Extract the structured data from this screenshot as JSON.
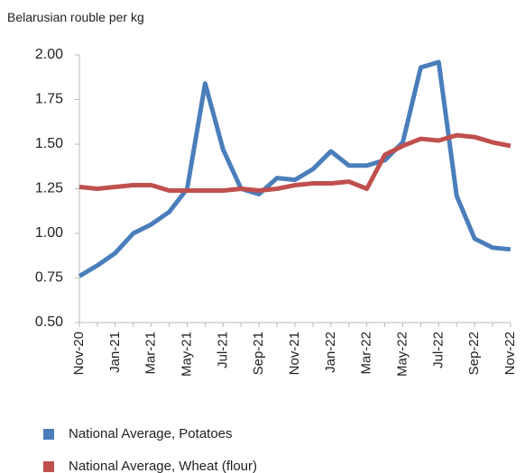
{
  "chart_data": {
    "type": "line",
    "y_axis_label": "Belarusian rouble per kg",
    "categories": [
      "Nov-20",
      null,
      "Jan-21",
      null,
      "Mar-21",
      null,
      "May-21",
      null,
      "Jul-21",
      null,
      "Sep-21",
      null,
      "Nov-21",
      null,
      "Jan-22",
      null,
      "Mar-22",
      null,
      "May-22",
      null,
      "Jul-22",
      null,
      "Sep-22",
      null,
      "Nov-22"
    ],
    "series": [
      {
        "name": "National Average, Potatoes",
        "color": "#4a7ebb",
        "values": [
          0.76,
          0.82,
          0.89,
          1.0,
          1.05,
          1.12,
          1.25,
          1.84,
          1.47,
          1.25,
          1.22,
          1.31,
          1.3,
          1.36,
          1.46,
          1.38,
          1.38,
          1.41,
          1.51,
          1.93,
          1.96,
          1.21,
          0.97,
          0.92,
          0.91
        ]
      },
      {
        "name": "National Average, Wheat (flour)",
        "color": "#c0504d",
        "values": [
          1.26,
          1.25,
          1.26,
          1.27,
          1.27,
          1.24,
          1.24,
          1.24,
          1.24,
          1.25,
          1.24,
          1.25,
          1.27,
          1.28,
          1.28,
          1.29,
          1.25,
          1.44,
          1.49,
          1.53,
          1.52,
          1.55,
          1.54,
          1.51,
          1.49
        ]
      }
    ],
    "ylim": [
      0.5,
      2.0
    ],
    "yticks": [
      {
        "value": 0.5,
        "label": "0.50"
      },
      {
        "value": 0.75,
        "label": "0.75"
      },
      {
        "value": 1.0,
        "label": "1.00"
      },
      {
        "value": 1.25,
        "label": "1.25"
      },
      {
        "value": 1.5,
        "label": "1.50"
      },
      {
        "value": 1.75,
        "label": "1.75"
      },
      {
        "value": 2.0,
        "label": "2.00"
      }
    ],
    "grid": false,
    "legend": "bottom"
  }
}
